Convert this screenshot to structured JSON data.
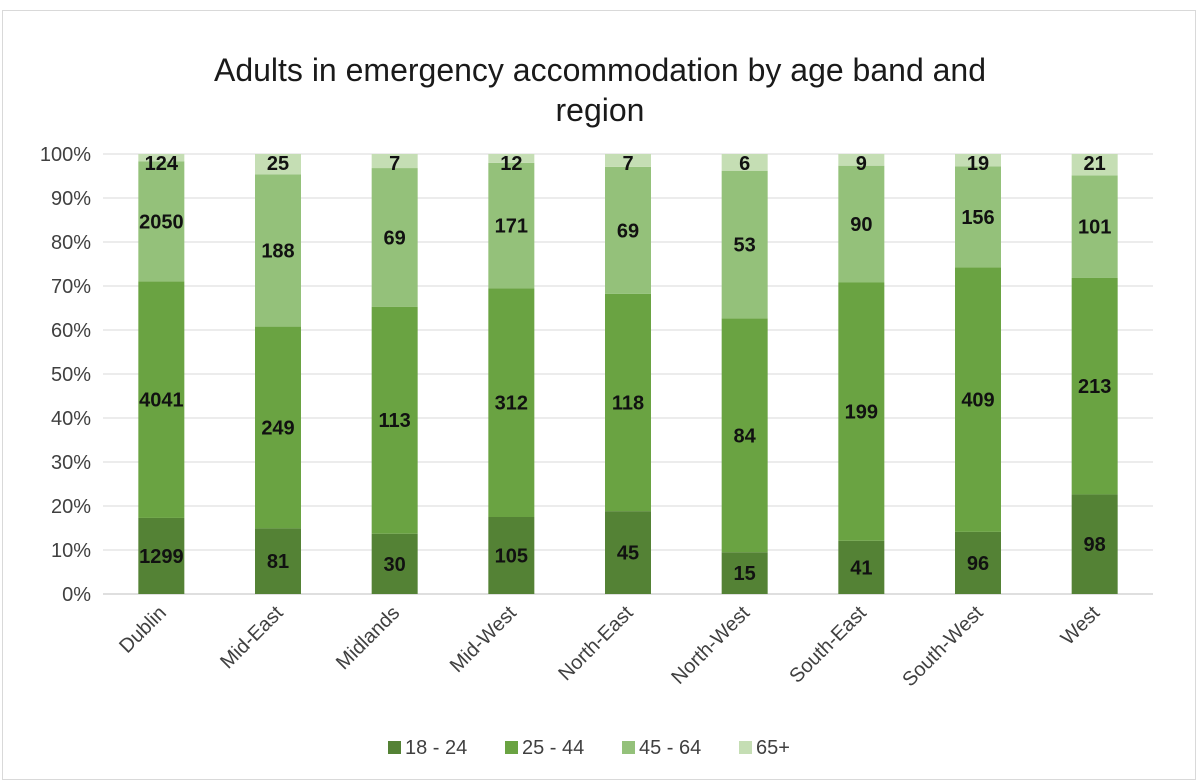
{
  "chart_data": {
    "type": "bar",
    "stacked": "percent",
    "title_lines": [
      "Adults in emergency accommodation by age band and",
      "region"
    ],
    "categories": [
      "Dublin",
      "Mid-East",
      "Midlands",
      "Mid-West",
      "North-East",
      "North-West",
      "South-East",
      "South-West",
      "West"
    ],
    "series": [
      {
        "name": "18 - 24",
        "color": "#548235",
        "values": [
          1299,
          81,
          30,
          105,
          45,
          15,
          41,
          96,
          98
        ]
      },
      {
        "name": "25 - 44",
        "color": "#6aa342",
        "values": [
          4041,
          249,
          113,
          312,
          118,
          84,
          199,
          409,
          213
        ]
      },
      {
        "name": "45 - 64",
        "color": "#94c17a",
        "values": [
          2050,
          188,
          69,
          171,
          69,
          53,
          90,
          156,
          101
        ]
      },
      {
        "name": "65+",
        "color": "#c5deb4",
        "values": [
          124,
          25,
          7,
          12,
          7,
          6,
          9,
          19,
          21
        ]
      }
    ],
    "yticks": [
      "0%",
      "10%",
      "20%",
      "30%",
      "40%",
      "50%",
      "60%",
      "70%",
      "80%",
      "90%",
      "100%"
    ],
    "ylim": [
      0,
      100
    ],
    "grid": true,
    "legend_position": "bottom"
  }
}
